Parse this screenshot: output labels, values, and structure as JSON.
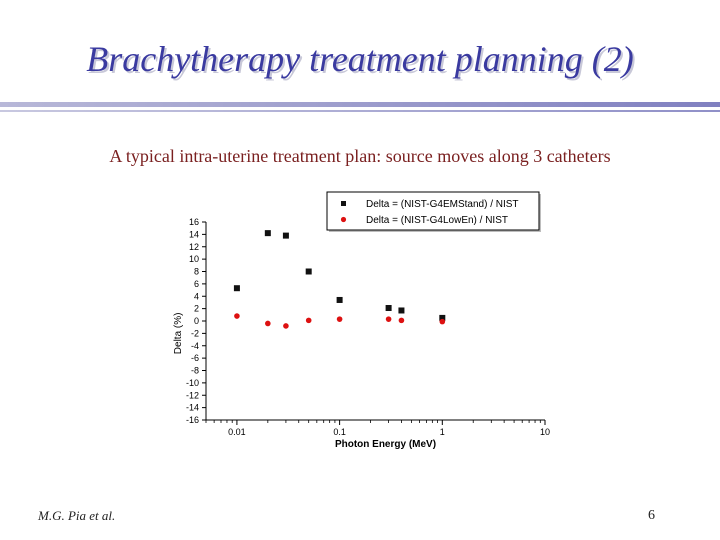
{
  "slide": {
    "title": "Brachytherapy treatment planning (2)",
    "subtitle": "A typical intra-uterine treatment plan: source moves along 3 catheters",
    "footer_left": "M.G. Pia et al.",
    "page_number": "6"
  },
  "colors": {
    "title": "#3a3aa0",
    "subtitle": "#7a2020",
    "series_1": "#111111",
    "series_2": "#dd1111"
  },
  "chart_data": {
    "type": "scatter",
    "xlabel": "Photon Energy (MeV)",
    "ylabel": "Delta (%)",
    "xscale": "log",
    "xlim": [
      0.005,
      10
    ],
    "ylim": [
      -16,
      16
    ],
    "xticks": [
      "0.01",
      "0.1",
      "1",
      "10"
    ],
    "yticks": [
      "16",
      "14",
      "12",
      "10",
      "8",
      "6",
      "4",
      "2",
      "0",
      "-2",
      "-4",
      "-6",
      "-8",
      "-10",
      "-12",
      "-14",
      "-16"
    ],
    "legend_position": "top-right",
    "series": [
      {
        "name": "Delta = (NIST-G4EMStand) / NIST",
        "marker": "square",
        "x": [
          0.01,
          0.02,
          0.03,
          0.05,
          0.1,
          0.3,
          0.4,
          1.0
        ],
        "y": [
          5.3,
          14.2,
          13.8,
          8.0,
          3.4,
          2.1,
          1.7,
          0.5
        ]
      },
      {
        "name": "Delta = (NIST-G4LowEn) / NIST",
        "marker": "circle",
        "x": [
          0.01,
          0.02,
          0.03,
          0.05,
          0.1,
          0.3,
          0.4,
          1.0
        ],
        "y": [
          0.8,
          -0.4,
          -0.8,
          0.1,
          0.3,
          0.3,
          0.1,
          -0.1
        ]
      }
    ]
  }
}
